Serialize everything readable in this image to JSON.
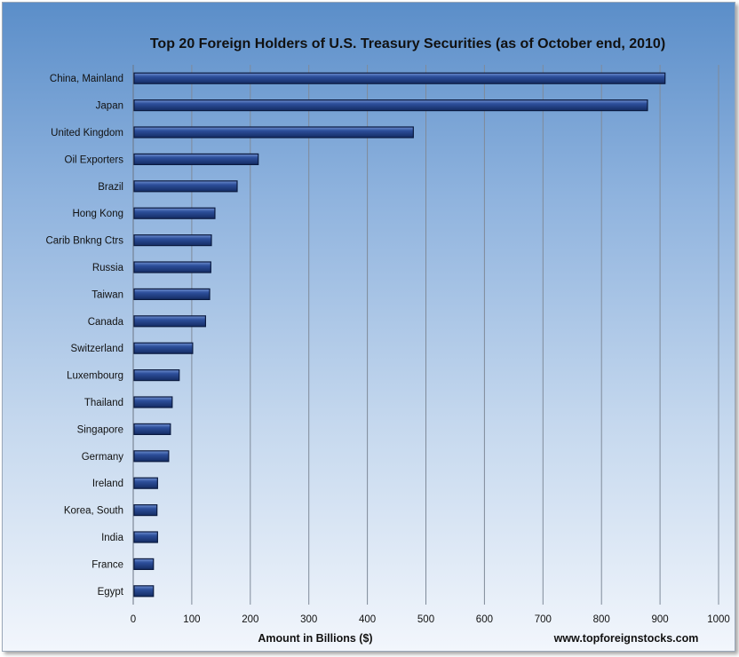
{
  "chart_data": {
    "type": "bar",
    "orientation": "horizontal",
    "title": "Top 20 Foreign Holders of U.S. Treasury Securities (as of October end, 2010)",
    "xlabel": "Amount  in Billions ($)",
    "source": "www.topforeignstocks.com",
    "xlim": [
      0,
      1000
    ],
    "xticks": [
      0,
      100,
      200,
      300,
      400,
      500,
      600,
      700,
      800,
      900,
      1000
    ],
    "grid": true,
    "bar_color": "#1f3f86",
    "categories": [
      "China, Mainland",
      "Japan",
      "United Kingdom",
      "Oil Exporters",
      "Brazil",
      "Hong Kong",
      "Carib Bnkng Ctrs",
      "Russia",
      "Taiwan",
      "Canada",
      "Switzerland",
      "Luxembourg",
      "Thailand",
      "Singapore",
      "Germany",
      "Ireland",
      "Korea, South",
      "India",
      "France",
      "Egypt"
    ],
    "values": [
      907,
      877,
      477,
      212,
      176,
      138,
      132,
      131,
      129,
      122,
      100,
      77,
      65,
      62,
      59,
      40,
      39,
      40,
      33,
      33
    ]
  }
}
